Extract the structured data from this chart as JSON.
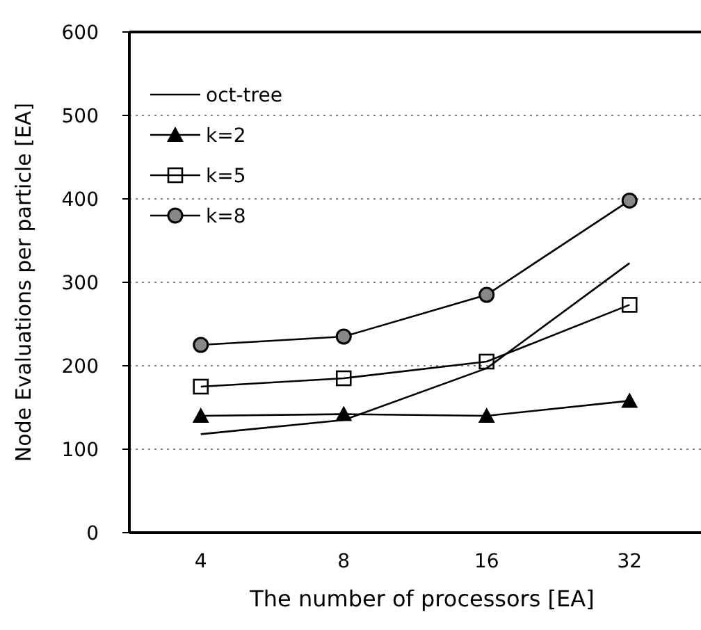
{
  "chart_data": {
    "type": "line",
    "xlabel": "The number of processors [EA]",
    "ylabel": "Node Evaluations per particle [EA]",
    "categories": [
      "4",
      "8",
      "16",
      "32"
    ],
    "ylim": [
      0,
      600
    ],
    "yticks": [
      0,
      100,
      200,
      300,
      400,
      500,
      600
    ],
    "grid": "y",
    "legend": "top left",
    "series": [
      {
        "name": "oct-tree",
        "color": "#000000",
        "marker": "none",
        "values": [
          118,
          135,
          197,
          323
        ]
      },
      {
        "name": "k=2",
        "color": "#000000",
        "marker": "triangle",
        "values": [
          140,
          142,
          140,
          158
        ]
      },
      {
        "name": "k=5",
        "color": "#000000",
        "marker": "square",
        "values": [
          175,
          185,
          205,
          273
        ]
      },
      {
        "name": "k=8",
        "color": "#000000",
        "marker": "circle",
        "values": [
          225,
          235,
          285,
          398
        ]
      }
    ]
  }
}
